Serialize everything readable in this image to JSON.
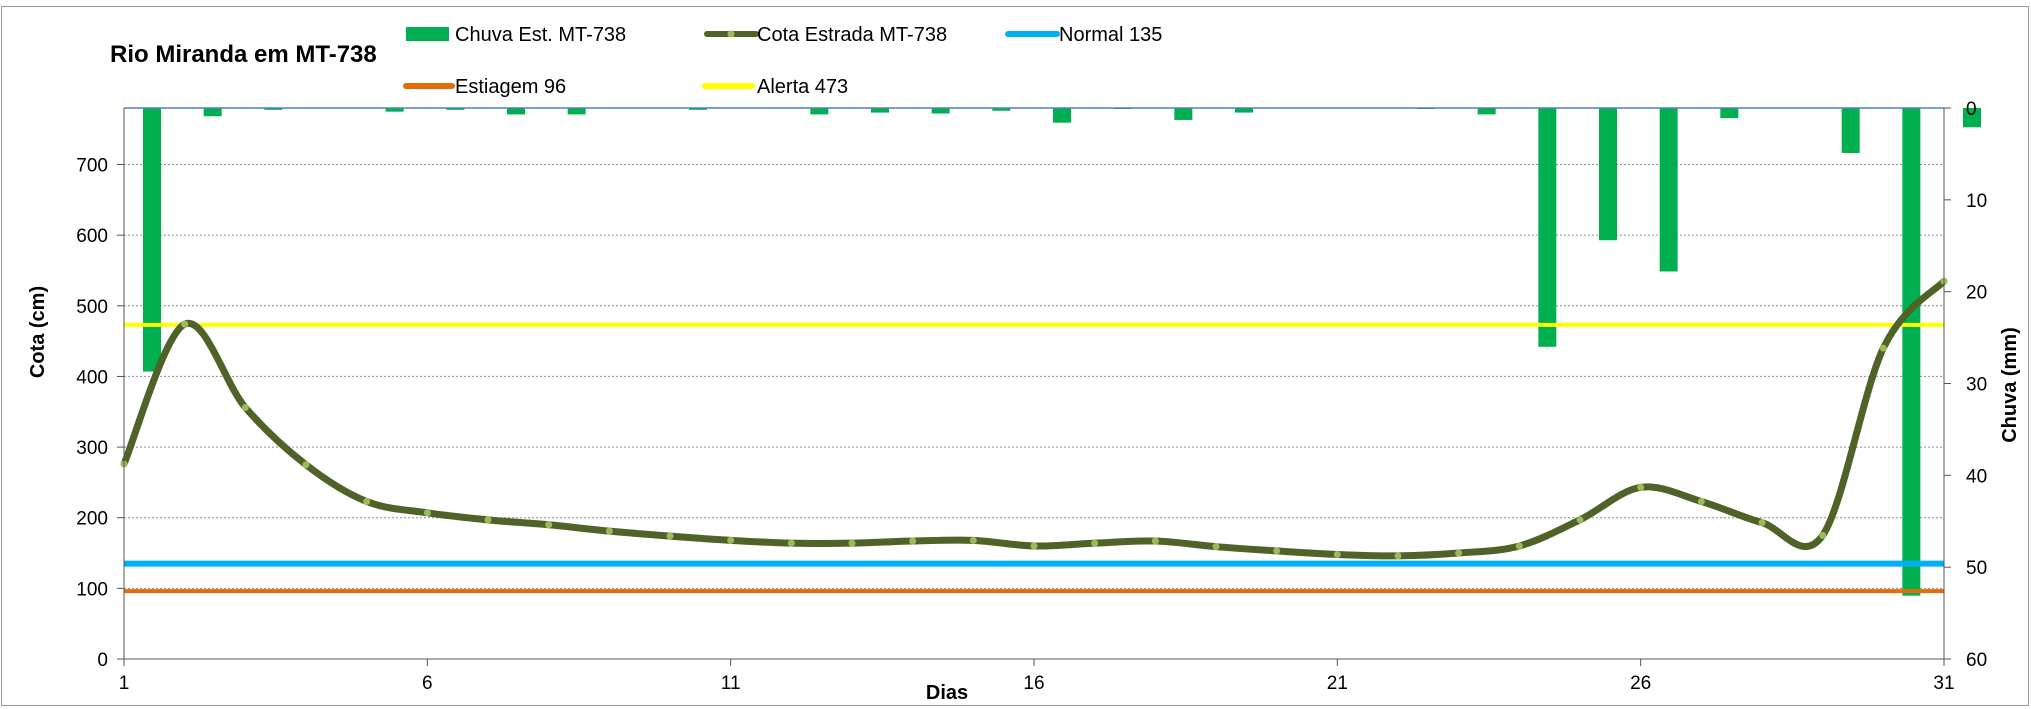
{
  "chart_data": {
    "type": "bar+line",
    "title": "Rio Miranda  em MT-738",
    "xlabel": "Dias",
    "ylabel_left": "Cota   (cm)",
    "ylabel_right": "Chuva (mm)",
    "xlim": [
      1,
      31
    ],
    "x_ticks": [
      "1",
      "6",
      "11",
      "16",
      "21",
      "26",
      "31"
    ],
    "ylim_left": [
      0,
      780
    ],
    "y_ticks_left": [
      "0",
      "100",
      "200",
      "300",
      "400",
      "500",
      "600",
      "700"
    ],
    "ylim_right": [
      60,
      0
    ],
    "y_ticks_right": [
      "0",
      "10",
      "20",
      "30",
      "40",
      "50",
      "60"
    ],
    "grid": "horizontal dotted",
    "legend_position": "top",
    "x": [
      1,
      2,
      3,
      4,
      5,
      6,
      7,
      8,
      9,
      10,
      11,
      12,
      13,
      14,
      15,
      16,
      17,
      18,
      19,
      20,
      21,
      22,
      23,
      24,
      25,
      26,
      27,
      28,
      29,
      30,
      31
    ],
    "series": [
      {
        "name": "Chuva Est. MT-738",
        "kind": "bar",
        "axis": "right",
        "color": "#00b050",
        "values": [
          28.7,
          0.9,
          0.2,
          0,
          0.4,
          0.2,
          0.7,
          0.7,
          0,
          0.2,
          0,
          0.7,
          0.5,
          0.6,
          0.3,
          1.6,
          0.1,
          1.3,
          0.5,
          0,
          0,
          0.1,
          0.7,
          26,
          14.4,
          17.8,
          1.1,
          0,
          4.9,
          53.1,
          2.1
        ]
      },
      {
        "name": "Cota Estrada MT-738",
        "kind": "line",
        "axis": "left",
        "color": "#4f6228",
        "marker_color": "#9bbb59",
        "values": [
          276,
          474,
          356,
          275,
          223,
          207,
          197,
          190,
          181,
          174,
          168,
          164,
          164,
          167,
          168,
          160,
          164,
          167,
          159,
          153,
          148,
          146,
          150,
          160,
          197,
          243,
          223,
          193,
          175,
          440,
          535
        ]
      },
      {
        "name": "Normal  135",
        "kind": "hline",
        "axis": "left",
        "value": 135,
        "color": "#00b0f0"
      },
      {
        "name": "Estiagem 96",
        "kind": "hline",
        "axis": "left",
        "value": 96,
        "color": "#e46c0a"
      },
      {
        "name": "Alerta 473",
        "kind": "hline",
        "axis": "left",
        "value": 473,
        "color": "#ffff00"
      }
    ]
  }
}
